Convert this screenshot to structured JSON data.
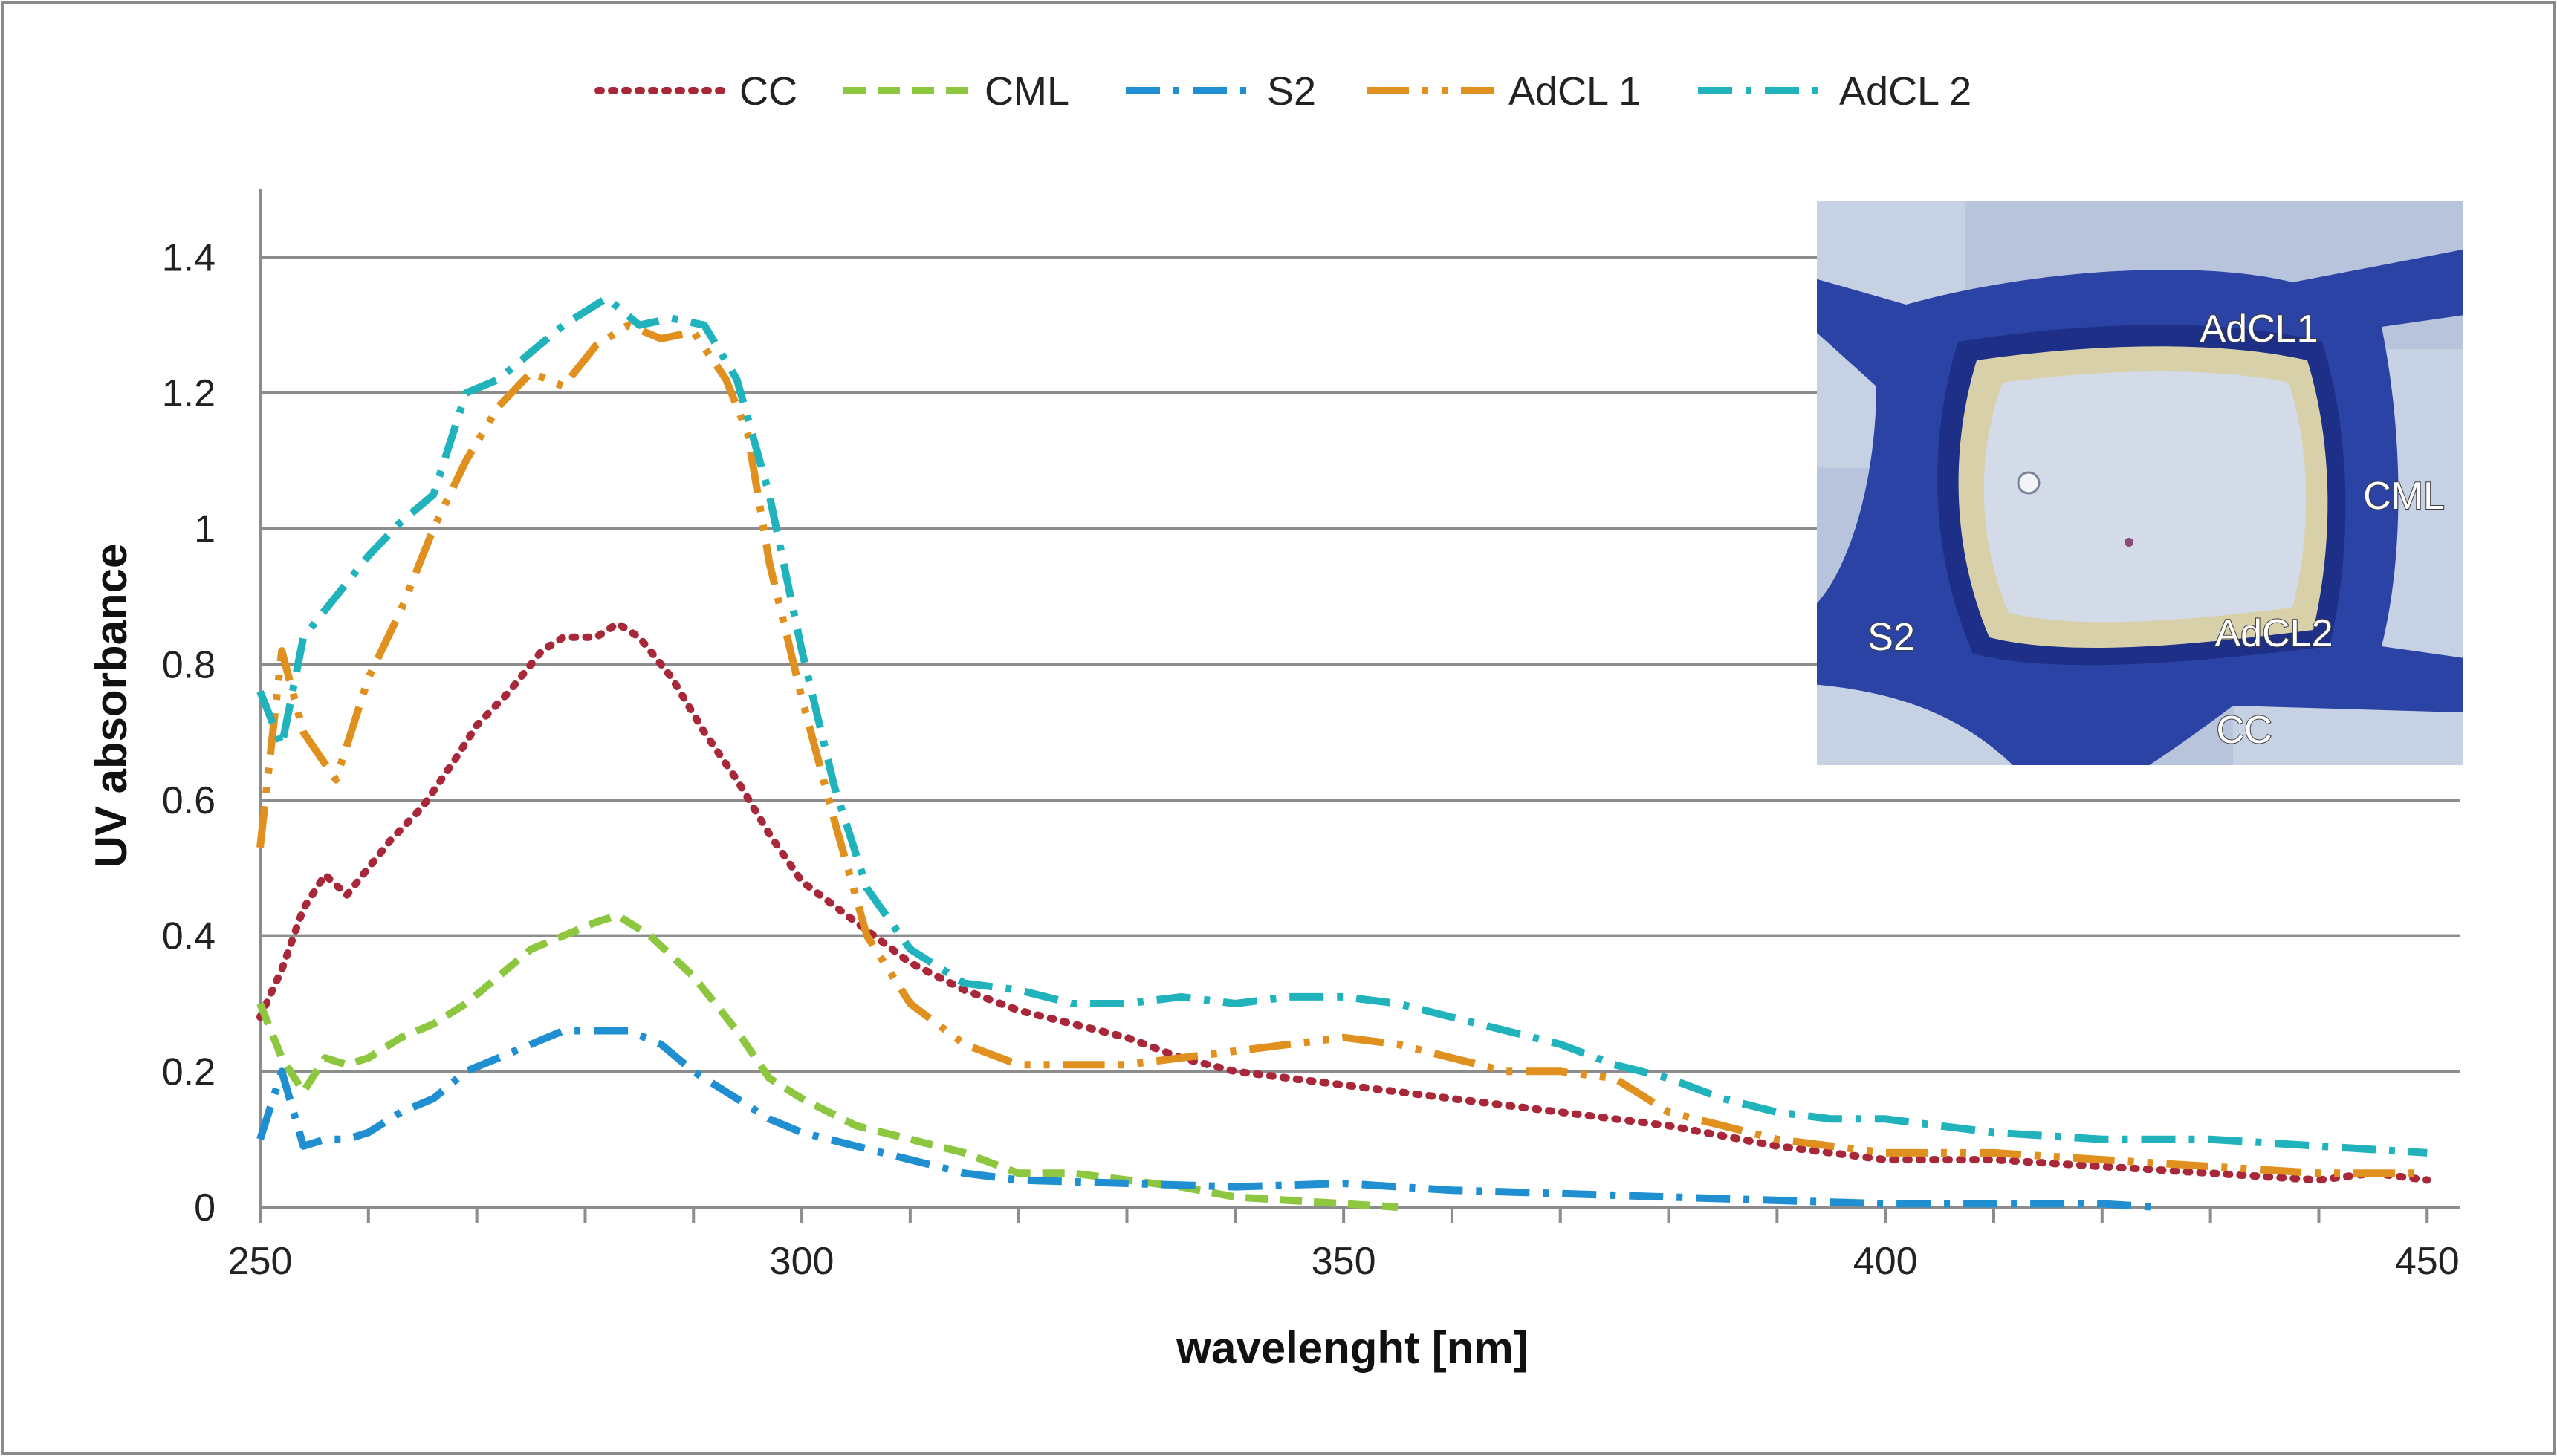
{
  "chart_data": {
    "type": "line",
    "title": "",
    "xlabel": "wavelenght [nm]",
    "ylabel": "UV absorbance",
    "xlim": [
      250,
      453
    ],
    "ylim": [
      0,
      1.5
    ],
    "x_ticks": [
      250,
      300,
      350,
      400,
      450
    ],
    "y_ticks": [
      0,
      0.2,
      0.4,
      0.6,
      0.8,
      1,
      1.2,
      1.4
    ],
    "y_tick_labels": [
      "0",
      "0.2",
      "0.4",
      "0.6",
      "0.8",
      "1",
      "1.2",
      "1.4"
    ],
    "grid": "horizontal",
    "legend_position": "top",
    "series": [
      {
        "name": "CC",
        "color": "#a8283a",
        "dash": "dotted",
        "points": [
          [
            250,
            0.28
          ],
          [
            252,
            0.35
          ],
          [
            254,
            0.44
          ],
          [
            256,
            0.49
          ],
          [
            258,
            0.46
          ],
          [
            260,
            0.5
          ],
          [
            262,
            0.54
          ],
          [
            265,
            0.59
          ],
          [
            268,
            0.66
          ],
          [
            270,
            0.71
          ],
          [
            273,
            0.76
          ],
          [
            276,
            0.82
          ],
          [
            278,
            0.84
          ],
          [
            281,
            0.84
          ],
          [
            283,
            0.86
          ],
          [
            285,
            0.84
          ],
          [
            288,
            0.78
          ],
          [
            291,
            0.7
          ],
          [
            294,
            0.63
          ],
          [
            297,
            0.55
          ],
          [
            300,
            0.48
          ],
          [
            305,
            0.42
          ],
          [
            310,
            0.36
          ],
          [
            315,
            0.32
          ],
          [
            320,
            0.29
          ],
          [
            325,
            0.27
          ],
          [
            330,
            0.25
          ],
          [
            335,
            0.22
          ],
          [
            340,
            0.2
          ],
          [
            345,
            0.19
          ],
          [
            350,
            0.18
          ],
          [
            355,
            0.17
          ],
          [
            360,
            0.16
          ],
          [
            365,
            0.15
          ],
          [
            370,
            0.14
          ],
          [
            380,
            0.12
          ],
          [
            390,
            0.09
          ],
          [
            400,
            0.07
          ],
          [
            410,
            0.07
          ],
          [
            420,
            0.06
          ],
          [
            430,
            0.05
          ],
          [
            440,
            0.04
          ],
          [
            445,
            0.05
          ],
          [
            450,
            0.04
          ]
        ]
      },
      {
        "name": "CML",
        "color": "#8dc63f",
        "dash": "dashed",
        "points": [
          [
            250,
            0.3
          ],
          [
            252,
            0.22
          ],
          [
            254,
            0.17
          ],
          [
            256,
            0.22
          ],
          [
            258,
            0.21
          ],
          [
            260,
            0.22
          ],
          [
            263,
            0.25
          ],
          [
            266,
            0.27
          ],
          [
            269,
            0.3
          ],
          [
            272,
            0.34
          ],
          [
            275,
            0.38
          ],
          [
            278,
            0.4
          ],
          [
            281,
            0.42
          ],
          [
            283,
            0.43
          ],
          [
            286,
            0.4
          ],
          [
            290,
            0.34
          ],
          [
            294,
            0.26
          ],
          [
            297,
            0.19
          ],
          [
            300,
            0.16
          ],
          [
            305,
            0.12
          ],
          [
            310,
            0.1
          ],
          [
            315,
            0.08
          ],
          [
            320,
            0.05
          ],
          [
            325,
            0.05
          ],
          [
            330,
            0.04
          ],
          [
            335,
            0.03
          ],
          [
            340,
            0.015
          ],
          [
            345,
            0.01
          ],
          [
            350,
            0.005
          ],
          [
            355,
            0
          ]
        ]
      },
      {
        "name": "S2",
        "color": "#1f8fd1",
        "dash": "dashdot",
        "points": [
          [
            250,
            0.1
          ],
          [
            252,
            0.2
          ],
          [
            254,
            0.09
          ],
          [
            256,
            0.1
          ],
          [
            258,
            0.1
          ],
          [
            260,
            0.11
          ],
          [
            263,
            0.14
          ],
          [
            266,
            0.16
          ],
          [
            269,
            0.2
          ],
          [
            272,
            0.22
          ],
          [
            275,
            0.24
          ],
          [
            278,
            0.26
          ],
          [
            281,
            0.26
          ],
          [
            284,
            0.26
          ],
          [
            287,
            0.24
          ],
          [
            290,
            0.2
          ],
          [
            294,
            0.16
          ],
          [
            297,
            0.13
          ],
          [
            300,
            0.11
          ],
          [
            305,
            0.09
          ],
          [
            310,
            0.07
          ],
          [
            315,
            0.05
          ],
          [
            320,
            0.04
          ],
          [
            330,
            0.035
          ],
          [
            340,
            0.03
          ],
          [
            350,
            0.035
          ],
          [
            360,
            0.025
          ],
          [
            370,
            0.02
          ],
          [
            380,
            0.015
          ],
          [
            390,
            0.01
          ],
          [
            400,
            0.005
          ],
          [
            410,
            0.005
          ],
          [
            420,
            0.005
          ],
          [
            425,
            0
          ]
        ]
      },
      {
        "name": "AdCL 1",
        "color": "#e0901e",
        "dash": "longdashdot",
        "points": [
          [
            250,
            0.53
          ],
          [
            252,
            0.82
          ],
          [
            254,
            0.7
          ],
          [
            257,
            0.63
          ],
          [
            260,
            0.78
          ],
          [
            263,
            0.88
          ],
          [
            266,
            1.0
          ],
          [
            269,
            1.1
          ],
          [
            272,
            1.18
          ],
          [
            275,
            1.23
          ],
          [
            278,
            1.21
          ],
          [
            281,
            1.27
          ],
          [
            284,
            1.3
          ],
          [
            287,
            1.28
          ],
          [
            290,
            1.29
          ],
          [
            293,
            1.22
          ],
          [
            295,
            1.14
          ],
          [
            297,
            0.95
          ],
          [
            300,
            0.75
          ],
          [
            303,
            0.57
          ],
          [
            306,
            0.4
          ],
          [
            310,
            0.3
          ],
          [
            315,
            0.24
          ],
          [
            320,
            0.21
          ],
          [
            325,
            0.21
          ],
          [
            330,
            0.21
          ],
          [
            335,
            0.22
          ],
          [
            340,
            0.23
          ],
          [
            345,
            0.24
          ],
          [
            350,
            0.25
          ],
          [
            355,
            0.24
          ],
          [
            360,
            0.22
          ],
          [
            365,
            0.2
          ],
          [
            370,
            0.2
          ],
          [
            375,
            0.19
          ],
          [
            380,
            0.14
          ],
          [
            385,
            0.12
          ],
          [
            390,
            0.1
          ],
          [
            395,
            0.09
          ],
          [
            400,
            0.08
          ],
          [
            410,
            0.08
          ],
          [
            420,
            0.07
          ],
          [
            430,
            0.06
          ],
          [
            440,
            0.05
          ],
          [
            450,
            0.05
          ]
        ]
      },
      {
        "name": "AdCL 2",
        "color": "#21b3bb",
        "dash": "dashdot",
        "points": [
          [
            250,
            0.76
          ],
          [
            252,
            0.68
          ],
          [
            254,
            0.84
          ],
          [
            257,
            0.9
          ],
          [
            260,
            0.96
          ],
          [
            263,
            1.01
          ],
          [
            266,
            1.05
          ],
          [
            269,
            1.2
          ],
          [
            272,
            1.22
          ],
          [
            275,
            1.26
          ],
          [
            278,
            1.3
          ],
          [
            282,
            1.34
          ],
          [
            285,
            1.3
          ],
          [
            288,
            1.31
          ],
          [
            291,
            1.3
          ],
          [
            294,
            1.22
          ],
          [
            297,
            1.05
          ],
          [
            300,
            0.82
          ],
          [
            303,
            0.62
          ],
          [
            306,
            0.47
          ],
          [
            310,
            0.38
          ],
          [
            315,
            0.33
          ],
          [
            320,
            0.32
          ],
          [
            325,
            0.3
          ],
          [
            330,
            0.3
          ],
          [
            335,
            0.31
          ],
          [
            340,
            0.3
          ],
          [
            345,
            0.31
          ],
          [
            350,
            0.31
          ],
          [
            355,
            0.3
          ],
          [
            360,
            0.28
          ],
          [
            365,
            0.26
          ],
          [
            370,
            0.24
          ],
          [
            375,
            0.21
          ],
          [
            380,
            0.19
          ],
          [
            385,
            0.16
          ],
          [
            390,
            0.14
          ],
          [
            395,
            0.13
          ],
          [
            400,
            0.13
          ],
          [
            410,
            0.11
          ],
          [
            420,
            0.1
          ],
          [
            430,
            0.1
          ],
          [
            440,
            0.09
          ],
          [
            450,
            0.08
          ]
        ]
      }
    ]
  },
  "inset": {
    "labels": [
      "AdCL1",
      "CML",
      "S2",
      "AdCL2",
      "CC"
    ],
    "colors": {
      "background": "#b7c4dc",
      "stain": "#2c43a6",
      "stain_dark": "#1d2f86",
      "lumen": "#d3dbe8",
      "wall_rim": "#d8d0a8"
    }
  }
}
